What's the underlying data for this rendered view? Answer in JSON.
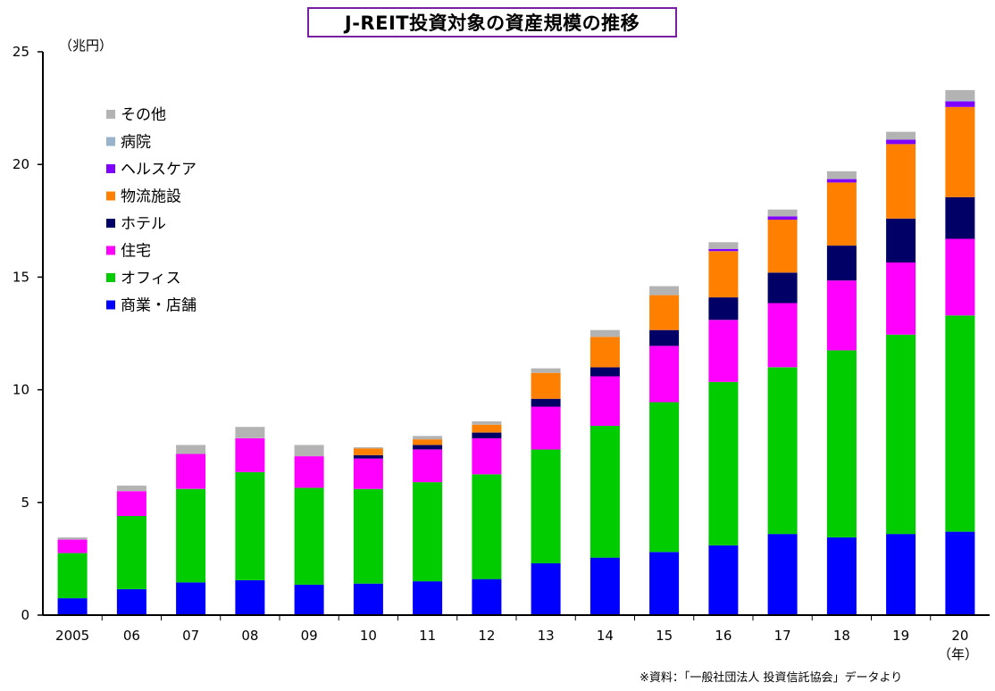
{
  "title": "J-REIT投資対象の資産規模の推移",
  "unit_label": "（兆円）",
  "year_unit": "（年）",
  "source_note": "※資料：「一般社団法人 投資信託協会」データより",
  "chart_data": {
    "type": "bar",
    "stacked": true,
    "title": "J-REIT投資対象の資産規模の推移",
    "xlabel": "（年）",
    "ylabel": "（兆円）",
    "ylim": [
      0,
      25
    ],
    "yticks": [
      0,
      5,
      10,
      15,
      20,
      25
    ],
    "categories": [
      "2005",
      "06",
      "07",
      "08",
      "09",
      "10",
      "11",
      "12",
      "13",
      "14",
      "15",
      "16",
      "17",
      "18",
      "19",
      "20"
    ],
    "series": [
      {
        "name": "商業・店舗",
        "color": "#0000ff",
        "values": [
          0.75,
          1.15,
          1.45,
          1.55,
          1.35,
          1.4,
          1.5,
          1.6,
          2.3,
          2.55,
          2.8,
          3.1,
          3.6,
          3.45,
          3.6,
          3.7
        ]
      },
      {
        "name": "オフィス",
        "color": "#00cc00",
        "values": [
          2.0,
          3.25,
          4.15,
          4.8,
          4.3,
          4.2,
          4.4,
          4.65,
          5.05,
          5.85,
          6.65,
          7.25,
          7.4,
          8.3,
          8.85,
          9.6
        ]
      },
      {
        "name": "住宅",
        "color": "#ff00ff",
        "values": [
          0.6,
          1.1,
          1.55,
          1.5,
          1.4,
          1.35,
          1.45,
          1.6,
          1.9,
          2.2,
          2.5,
          2.75,
          2.85,
          3.1,
          3.2,
          3.4
        ]
      },
      {
        "name": "ホテル",
        "color": "#000066",
        "values": [
          0.0,
          0.0,
          0.0,
          0.0,
          0.0,
          0.15,
          0.2,
          0.25,
          0.35,
          0.4,
          0.7,
          1.0,
          1.35,
          1.55,
          1.95,
          1.85
        ]
      },
      {
        "name": "物流施設",
        "color": "#ff8000",
        "values": [
          0.0,
          0.0,
          0.0,
          0.0,
          0.0,
          0.3,
          0.25,
          0.35,
          1.15,
          1.35,
          1.55,
          2.05,
          2.35,
          2.8,
          3.3,
          4.0
        ]
      },
      {
        "name": "ヘルスケア",
        "color": "#8000ff",
        "values": [
          0.0,
          0.0,
          0.0,
          0.0,
          0.0,
          0.0,
          0.0,
          0.0,
          0.0,
          0.0,
          0.0,
          0.1,
          0.15,
          0.15,
          0.2,
          0.25
        ]
      },
      {
        "name": "病院",
        "color": "#99b3cc",
        "values": [
          0.0,
          0.0,
          0.0,
          0.0,
          0.0,
          0.0,
          0.0,
          0.0,
          0.0,
          0.0,
          0.0,
          0.0,
          0.0,
          0.0,
          0.0,
          0.05
        ]
      },
      {
        "name": "その他",
        "color": "#b3b3b3",
        "values": [
          0.1,
          0.25,
          0.4,
          0.5,
          0.5,
          0.05,
          0.15,
          0.15,
          0.2,
          0.3,
          0.4,
          0.3,
          0.3,
          0.35,
          0.35,
          0.45
        ]
      }
    ],
    "legend_order": [
      "その他",
      "病院",
      "ヘルスケア",
      "物流施設",
      "ホテル",
      "住宅",
      "オフィス",
      "商業・店舗"
    ],
    "legend_position": "top-left"
  }
}
